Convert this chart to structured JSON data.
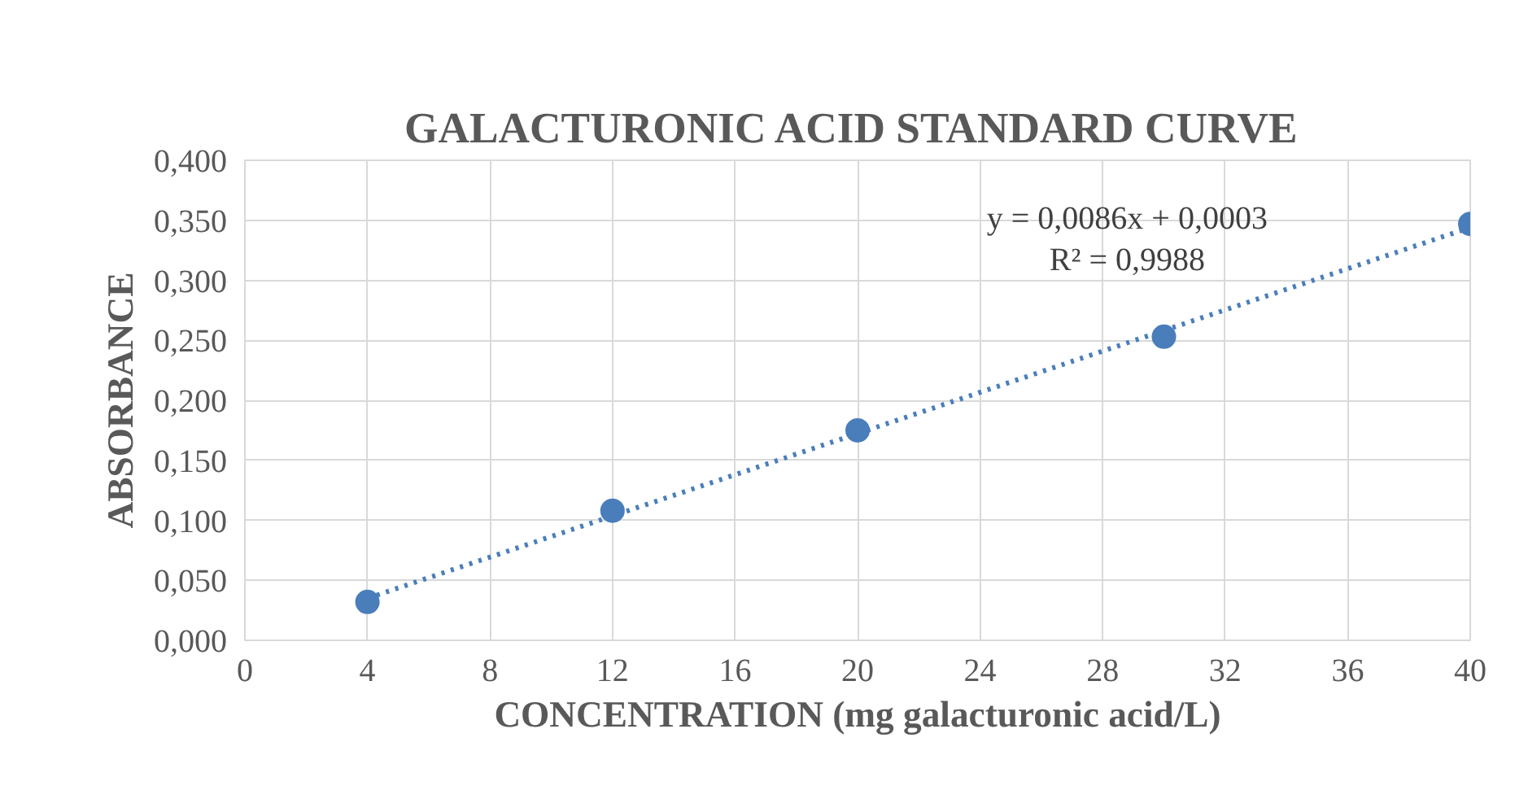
{
  "chart_data": {
    "type": "scatter",
    "title": "GALACTURONIC ACID  STANDARD CURVE",
    "xlabel": "CONCENTRATION (mg galacturonic acid/L)",
    "ylabel": "ABSORBANCE",
    "x": [
      4,
      12,
      20,
      30,
      40
    ],
    "series": [
      {
        "color": "#4a7ebb",
        "marker": "circle",
        "values": [
          0.032,
          0.108,
          0.175,
          0.253,
          0.347
        ]
      },
      {
        "type": "line",
        "color": "#4a7ebb",
        "line_style": "dotted",
        "x": [
          4,
          40
        ],
        "values": [
          0.035,
          0.344
        ]
      }
    ],
    "annotations": [
      "y = 0,0086x + 0,0003",
      "R² = 0,9988"
    ],
    "xlim": [
      0,
      40
    ],
    "xticks": [
      0,
      4,
      8,
      12,
      16,
      20,
      24,
      28,
      32,
      36,
      40
    ],
    "ylim": [
      0,
      0.4
    ],
    "yticks": [
      {
        "value": 0,
        "label": "0,000"
      },
      {
        "value": 0.05,
        "label": "0,050"
      },
      {
        "value": 0.1,
        "label": "0,100"
      },
      {
        "value": 0.15,
        "label": "0,150"
      },
      {
        "value": 0.2,
        "label": "0,200"
      },
      {
        "value": 0.25,
        "label": "0,250"
      },
      {
        "value": 0.3,
        "label": "0,300"
      },
      {
        "value": 0.35,
        "label": "0,350"
      },
      {
        "value": 0.4,
        "label": "0,400"
      }
    ],
    "grid": true
  }
}
